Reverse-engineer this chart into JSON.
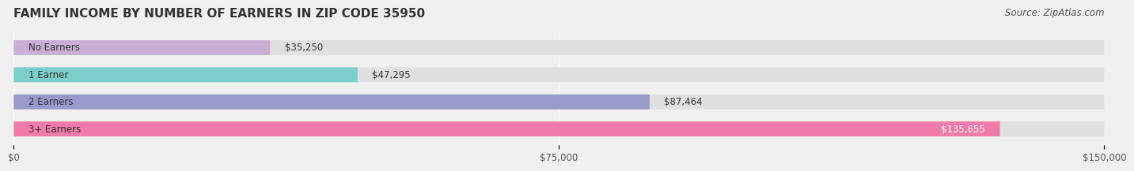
{
  "title": "FAMILY INCOME BY NUMBER OF EARNERS IN ZIP CODE 35950",
  "source": "Source: ZipAtlas.com",
  "categories": [
    "No Earners",
    "1 Earner",
    "2 Earners",
    "3+ Earners"
  ],
  "values": [
    35250,
    47295,
    87464,
    135655
  ],
  "bar_colors": [
    "#c9afd4",
    "#7dcfcc",
    "#9999cc",
    "#f07aaa"
  ],
  "label_colors": [
    "#333333",
    "#333333",
    "#333333",
    "#ffffff"
  ],
  "background_color": "#f0f0f0",
  "bar_background": "#e8e8e8",
  "xlim": [
    0,
    150000
  ],
  "xticks": [
    0,
    75000,
    150000
  ],
  "xtick_labels": [
    "$0",
    "$75,000",
    "$150,000"
  ],
  "title_fontsize": 11,
  "source_fontsize": 8.5,
  "label_fontsize": 8.5,
  "value_fontsize": 8.5,
  "tick_fontsize": 8.5
}
